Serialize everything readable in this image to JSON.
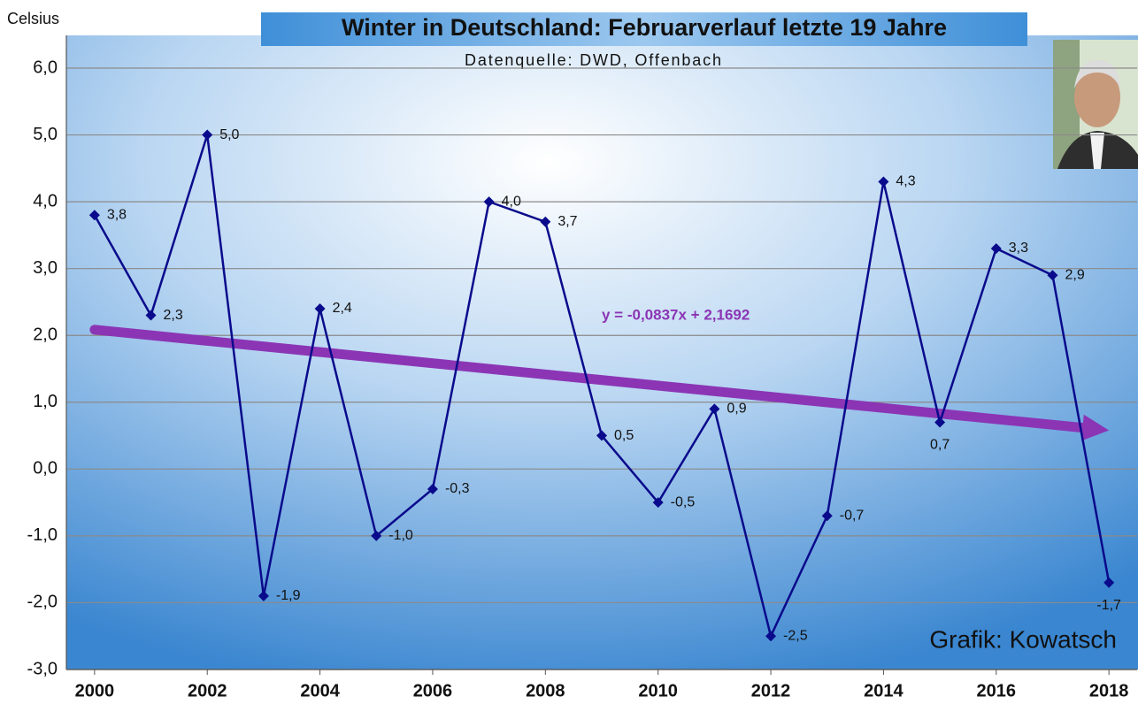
{
  "chart_data": {
    "type": "line",
    "title": "Winter in Deutschland:  Februarverlauf letzte 19 Jahre",
    "subtitle": "Datenquelle: DWD, Offenbach",
    "y_label": "Celsius",
    "credit": "Grafik: Kowatsch",
    "x": [
      2000,
      2001,
      2002,
      2003,
      2004,
      2005,
      2006,
      2007,
      2008,
      2009,
      2010,
      2011,
      2012,
      2013,
      2014,
      2015,
      2016,
      2017,
      2018
    ],
    "values": [
      3.8,
      2.3,
      5.0,
      -1.9,
      2.4,
      -1.0,
      -0.3,
      4.0,
      3.7,
      0.5,
      -0.5,
      0.9,
      -2.5,
      -0.7,
      4.3,
      0.7,
      3.3,
      2.9,
      -1.7
    ],
    "value_labels": [
      "3,8",
      "2,3",
      "5,0",
      "-1,9",
      "2,4",
      "-1,0",
      "-0,3",
      "4,0",
      "3,7",
      "0,5",
      "-0,5",
      "0,9",
      "-2,5",
      "-0,7",
      "4,3",
      "0,7",
      "3,3",
      "2,9",
      "-1,7"
    ],
    "color": "#0a0a8c",
    "xlim": [
      1999.5,
      2018.5
    ],
    "xticks": [
      2000,
      2002,
      2004,
      2006,
      2008,
      2010,
      2012,
      2014,
      2016,
      2018
    ],
    "ylim": [
      -3,
      6
    ],
    "yticks": [
      {
        "value": -3,
        "label": "-3,0"
      },
      {
        "value": -2,
        "label": "-2,0"
      },
      {
        "value": -1,
        "label": "-1,0"
      },
      {
        "value": 0,
        "label": "0,0"
      },
      {
        "value": 1,
        "label": "1,0"
      },
      {
        "value": 2,
        "label": "2,0"
      },
      {
        "value": 3,
        "label": "3,0"
      },
      {
        "value": 4,
        "label": "4,0"
      },
      {
        "value": 5,
        "label": "5,0"
      },
      {
        "value": 6,
        "label": "6,0"
      }
    ],
    "grid": true,
    "trend": {
      "label": "y = -0,0837x + 2,1692",
      "slope": -0.0837,
      "intercept": 2.1692,
      "color": "#8b35b5"
    }
  }
}
